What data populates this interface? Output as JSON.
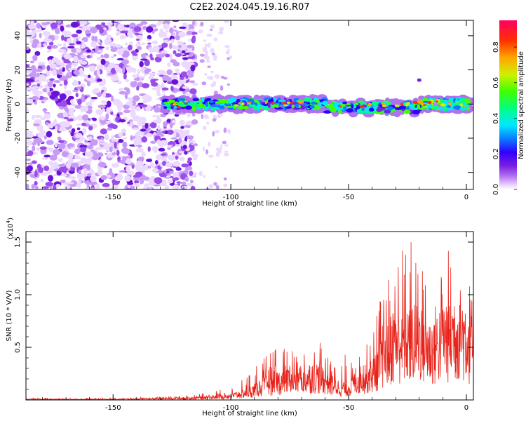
{
  "title": "C2E2.2024.045.19.16.R07",
  "chart_data": [
    {
      "type": "heatmap",
      "title": "C2E2.2024.045.19.16.R07",
      "xlabel": "Height of straight line (km)",
      "ylabel": "Frequency (Hz)",
      "xlim": [
        -187,
        3
      ],
      "ylim": [
        -50,
        49
      ],
      "x_ticks": [
        -150,
        -100,
        -50,
        0
      ],
      "x_tick_labels": [
        "-150",
        "-100",
        "-50",
        "0"
      ],
      "y_ticks": [
        -40,
        -20,
        0,
        20,
        40
      ],
      "y_tick_labels": [
        "-40",
        "-20",
        "0",
        "20",
        "40"
      ],
      "colorbar": {
        "label": "Normalized spectral amplitude",
        "range": [
          0,
          0.95
        ],
        "ticks": [
          0.0,
          0.2,
          0.4,
          0.6,
          0.8
        ],
        "tick_labels": [
          "0.0",
          "0.2",
          "0.4",
          "0.6",
          "0.8"
        ],
        "colormap": [
          "#ffffff",
          "#e8ccff",
          "#b070f0",
          "#7a1ee0",
          "#3000ff",
          "#0a7cff",
          "#00e8ff",
          "#00ff80",
          "#40ff00",
          "#d0f000",
          "#ffa500",
          "#ff3000",
          "#ff0060"
        ]
      },
      "features": {
        "noise_region_x": [
          -187,
          -115
        ],
        "sparse_noise_x": [
          -113,
          -100
        ],
        "signal_band_x": [
          -128,
          2
        ],
        "signal_band_freq_hz": 0,
        "signal_band_halfwidth_hz": 4,
        "isolated_blob": {
          "x": -20,
          "y": 14
        }
      }
    },
    {
      "type": "line",
      "xlabel": "Height of straight line (km)",
      "ylabel": "SNR (10 * V/V)",
      "y_multiplier_label": "(x10",
      "y_multiplier_exp": "4",
      "y_multiplier_close": ")",
      "xlim": [
        -187,
        3
      ],
      "ylim": [
        0,
        1.6
      ],
      "x_ticks": [
        -150,
        -100,
        -50,
        0
      ],
      "x_tick_labels": [
        "-150",
        "-100",
        "-50",
        "0"
      ],
      "y_ticks": [
        0.5,
        1.0,
        1.5
      ],
      "y_tick_labels": [
        "0.5",
        "1.0",
        "1.5"
      ],
      "series": [
        {
          "color": "#e8231a",
          "x": [
            -187,
            -170,
            -150,
            -130,
            -115,
            -108,
            -100,
            -95,
            -90,
            -85,
            -80,
            -75,
            -70,
            -65,
            -60,
            -55,
            -50,
            -45,
            -40,
            -35,
            -30,
            -25,
            -20,
            -15,
            -10,
            -5,
            0,
            3
          ],
          "y": [
            0.01,
            0.01,
            0.01,
            0.02,
            0.03,
            0.05,
            0.06,
            0.1,
            0.15,
            0.25,
            0.28,
            0.32,
            0.3,
            0.38,
            0.32,
            0.2,
            0.18,
            0.35,
            0.4,
            0.7,
            0.95,
            0.9,
            1.0,
            0.75,
            0.95,
            1.05,
            1.0,
            0.8
          ],
          "y_peak": [
            0.02,
            0.02,
            0.02,
            0.03,
            0.05,
            0.08,
            0.12,
            0.2,
            0.3,
            0.42,
            0.55,
            0.5,
            0.5,
            0.6,
            0.55,
            0.4,
            0.45,
            0.5,
            0.75,
            1.1,
            1.45,
            1.6,
            1.45,
            1.3,
            1.5,
            1.55,
            1.45,
            0.9
          ]
        }
      ]
    }
  ]
}
